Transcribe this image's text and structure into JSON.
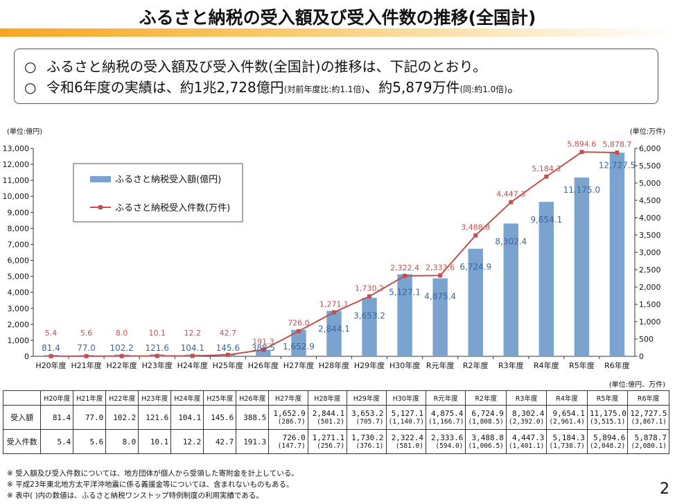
{
  "page": {
    "title": "ふるさと納税の受入額及び受入件数の推移(全国計)",
    "summary": [
      {
        "mark": "○",
        "text": "ふるさと納税の受入額及び受入件数(全国計)の推移は、下記のとおり。",
        "note": "",
        "tail": "",
        "note2": "",
        "end": ""
      },
      {
        "mark": "○",
        "text": "令和6年度の実績は、約1兆2,728億円",
        "note": "(対前年度比:約1.1倍)",
        "tail": "、約5,879万件",
        "note2": "(同:約1.0倍)",
        "end": "。"
      }
    ],
    "unit_left": "(単位:億円)",
    "unit_right": "(単位:万件)",
    "table_unit": "(単位:億円、万件)",
    "notes": [
      "※ 受入額及び受入件数については、地方団体が個人から受領した寄附金を計上している。",
      "※ 平成23年東北地方太平洋沖地震に係る義援金等については、含まれないものもある。",
      "※ 表中( )内の数値は、ふるさと納税ワンストップ特例制度の利用実績である。"
    ],
    "page_number": "2"
  },
  "chart_data": {
    "type": "bar+line",
    "categories": [
      "H20年度",
      "H21年度",
      "H22年度",
      "H23年度",
      "H24年度",
      "H25年度",
      "H26年度",
      "H27年度",
      "H28年度",
      "H29年度",
      "H30年度",
      "R元年度",
      "R2年度",
      "R3年度",
      "R4年度",
      "R5年度",
      "R6年度"
    ],
    "series": [
      {
        "name": "ふるさと納税受入額(億円)",
        "type": "bar",
        "axis": "left",
        "color": "#7ba3cf",
        "label_color": "#3a66a0",
        "values": [
          81.4,
          77.0,
          102.2,
          121.6,
          104.1,
          145.6,
          388.5,
          1652.9,
          2844.1,
          3653.2,
          5127.1,
          4875.4,
          6724.9,
          8302.4,
          9654.1,
          11175.0,
          12727.5
        ],
        "labels": [
          "81.4",
          "77.0",
          "102.2",
          "121.6",
          "104.1",
          "145.6",
          "388.5",
          "1,652.9",
          "2,844.1",
          "3,653.2",
          "5,127.1",
          "4,875.4",
          "6,724.9",
          "8,302.4",
          "9,654.1",
          "11,175.0",
          "12,727.5"
        ]
      },
      {
        "name": "ふるさと納税受入件数(万件)",
        "type": "line",
        "axis": "right",
        "color": "#c0504d",
        "label_color": "#c0504d",
        "values": [
          5.4,
          5.6,
          8.0,
          10.1,
          12.2,
          42.7,
          191.3,
          726.0,
          1271.1,
          1730.2,
          2322.4,
          2333.6,
          3488.8,
          4447.3,
          5184.3,
          5894.6,
          5878.7
        ],
        "labels": [
          "5.4",
          "5.6",
          "8.0",
          "10.1",
          "12.2",
          "42.7",
          "191.3",
          "726.0",
          "1,271.1",
          "1,730.2",
          "2,322.4",
          "2,333.6",
          "3,488.8",
          "4,447.3",
          "5,184.3",
          "5,894.6",
          "5,878.7"
        ]
      }
    ],
    "y_left": {
      "min": 0,
      "max": 13000,
      "step": 1000,
      "ticks": [
        "0",
        "1,000",
        "2,000",
        "3,000",
        "4,000",
        "5,000",
        "6,000",
        "7,000",
        "8,000",
        "9,000",
        "10,000",
        "11,000",
        "12,000",
        "13,000"
      ]
    },
    "y_right": {
      "min": 0,
      "max": 6000,
      "step": 500,
      "ticks": [
        "0",
        "500",
        "1,000",
        "1,500",
        "2,000",
        "2,500",
        "3,000",
        "3,500",
        "4,000",
        "4,500",
        "5,000",
        "5,500",
        "6,000"
      ]
    },
    "legend_position": "top-left",
    "grid": false
  },
  "table": {
    "headers": [
      "",
      "H20年度",
      "H21年度",
      "H22年度",
      "H23年度",
      "H24年度",
      "H25年度",
      "H26年度",
      "H27年度",
      "H28年度",
      "H29年度",
      "H30年度",
      "R元年度",
      "R2年度",
      "R3年度",
      "R4年度",
      "R5年度",
      "R6年度"
    ],
    "rows": [
      {
        "label": "受入額",
        "values": [
          "81.4",
          "77.0",
          "102.2",
          "121.6",
          "104.1",
          "145.6",
          "388.5",
          "1,652.9",
          "2,844.1",
          "3,653.2",
          "5,127.1",
          "4,875.4",
          "6,724.9",
          "8,302.4",
          "9,654.1",
          "11,175.0",
          "12,727.5"
        ],
        "onestop": [
          "",
          "",
          "",
          "",
          "",
          "",
          "",
          "(286.7)",
          "(501.2)",
          "(705.7)",
          "(1,140.7)",
          "(1,166.7)",
          "(1,808.5)",
          "(2,392.0)",
          "(2,961.4)",
          "(3,515.1)",
          "(3,867.1)"
        ]
      },
      {
        "label": "受入件数",
        "values": [
          "5.4",
          "5.6",
          "8.0",
          "10.1",
          "12.2",
          "42.7",
          "191.3",
          "726.0",
          "1,271.1",
          "1,730.2",
          "2,322.4",
          "2,333.6",
          "3,488.8",
          "4,447.3",
          "5,184.3",
          "5,894.6",
          "5,878.7"
        ],
        "onestop": [
          "",
          "",
          "",
          "",
          "",
          "",
          "",
          "(147.7)",
          "(256.7)",
          "(376.1)",
          "(581.0)",
          "(594.0)",
          "(1,006.5)",
          "(1,401.1)",
          "(1,738.7)",
          "(2,048.2)",
          "(2,080.1)"
        ]
      }
    ]
  }
}
